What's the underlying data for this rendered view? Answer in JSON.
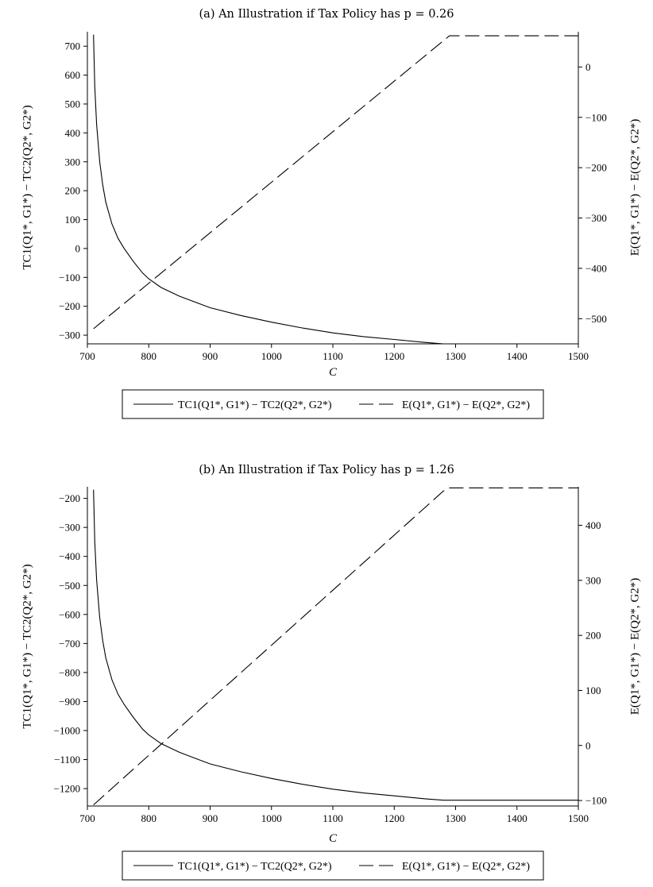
{
  "chart_data": [
    {
      "type": "line",
      "title": "(a) An Illustration if Tax Policy has p = 0.26",
      "xlabel": "C",
      "ylabel": "TC1(Q1*, G1*) − TC2(Q2*, G2*)",
      "y2label": "E(Q1*, G1*) − E(Q2*, G2*)",
      "xlim": [
        700,
        1500
      ],
      "ylim": [
        -330,
        750
      ],
      "y2lim": [
        -550,
        70
      ],
      "xticks": [
        700,
        800,
        900,
        1000,
        1100,
        1200,
        1300,
        1400,
        1500
      ],
      "yticks": [
        -300,
        -200,
        -100,
        0,
        100,
        200,
        300,
        400,
        500,
        600,
        700
      ],
      "y2ticks": [
        -500,
        -400,
        -300,
        -200,
        -100,
        0
      ],
      "legend": {
        "placement": "bottom",
        "entries": [
          "TC1(Q1*, G1*) − TC2(Q2*, G2*)",
          "E(Q1*, G1*) − E(Q2*, G2*)"
        ]
      },
      "series": [
        {
          "name": "TC1(Q1*, G1*) − TC2(Q2*, G2*)",
          "style": "solid",
          "axis": "left",
          "x": [
            710,
            712,
            715,
            720,
            725,
            730,
            740,
            750,
            760,
            775,
            790,
            800,
            820,
            850,
            900,
            950,
            1000,
            1050,
            1100,
            1150,
            1200,
            1250,
            1280,
            1300,
            1400,
            1500
          ],
          "y": [
            740,
            560,
            430,
            300,
            220,
            160,
            85,
            35,
            0,
            -45,
            -85,
            -105,
            -135,
            -165,
            -205,
            -232,
            -255,
            -275,
            -292,
            -305,
            -315,
            -325,
            -330,
            -330,
            -330,
            -330
          ]
        },
        {
          "name": "E(Q1*, G1*) − E(Q2*, G2*)",
          "style": "dashed",
          "axis": "right",
          "x": [
            710,
            1280,
            1290,
            1500
          ],
          "y": [
            -520,
            52,
            62,
            62
          ]
        }
      ]
    },
    {
      "type": "line",
      "title": "(b) An Illustration if Tax Policy has p = 1.26",
      "xlabel": "C",
      "ylabel": "TC1(Q1*, G1*) − TC2(Q2*, G2*)",
      "y2label": "E(Q1*, G1*) − E(Q2*, G2*)",
      "xlim": [
        700,
        1500
      ],
      "ylim": [
        -1260,
        -160
      ],
      "y2lim": [
        -110,
        470
      ],
      "xticks": [
        700,
        800,
        900,
        1000,
        1100,
        1200,
        1300,
        1400,
        1500
      ],
      "yticks": [
        -1200,
        -1100,
        -1000,
        -900,
        -800,
        -700,
        -600,
        -500,
        -400,
        -300,
        -200
      ],
      "y2ticks": [
        -100,
        0,
        100,
        200,
        300,
        400
      ],
      "legend": {
        "placement": "bottom",
        "entries": [
          "TC1(Q1*, G1*) − TC2(Q2*, G2*)",
          "E(Q1*, G1*) − E(Q2*, G2*)"
        ]
      },
      "series": [
        {
          "name": "TC1(Q1*, G1*) − TC2(Q2*, G2*)",
          "style": "solid",
          "axis": "left",
          "x": [
            710,
            712,
            715,
            720,
            725,
            730,
            740,
            750,
            760,
            775,
            790,
            800,
            820,
            850,
            900,
            950,
            1000,
            1050,
            1100,
            1150,
            1200,
            1250,
            1280,
            1300,
            1400,
            1500
          ],
          "y": [
            -170,
            -350,
            -480,
            -610,
            -690,
            -750,
            -825,
            -875,
            -910,
            -955,
            -995,
            -1015,
            -1045,
            -1075,
            -1115,
            -1142,
            -1165,
            -1185,
            -1202,
            -1215,
            -1225,
            -1235,
            -1240,
            -1240,
            -1240,
            -1240
          ]
        },
        {
          "name": "E(Q1*, G1*) − E(Q2*, G2*)",
          "style": "dashed",
          "axis": "right",
          "x": [
            710,
            1280,
            1290,
            1500
          ],
          "y": [
            -108,
            462,
            468,
            468
          ]
        }
      ]
    }
  ]
}
